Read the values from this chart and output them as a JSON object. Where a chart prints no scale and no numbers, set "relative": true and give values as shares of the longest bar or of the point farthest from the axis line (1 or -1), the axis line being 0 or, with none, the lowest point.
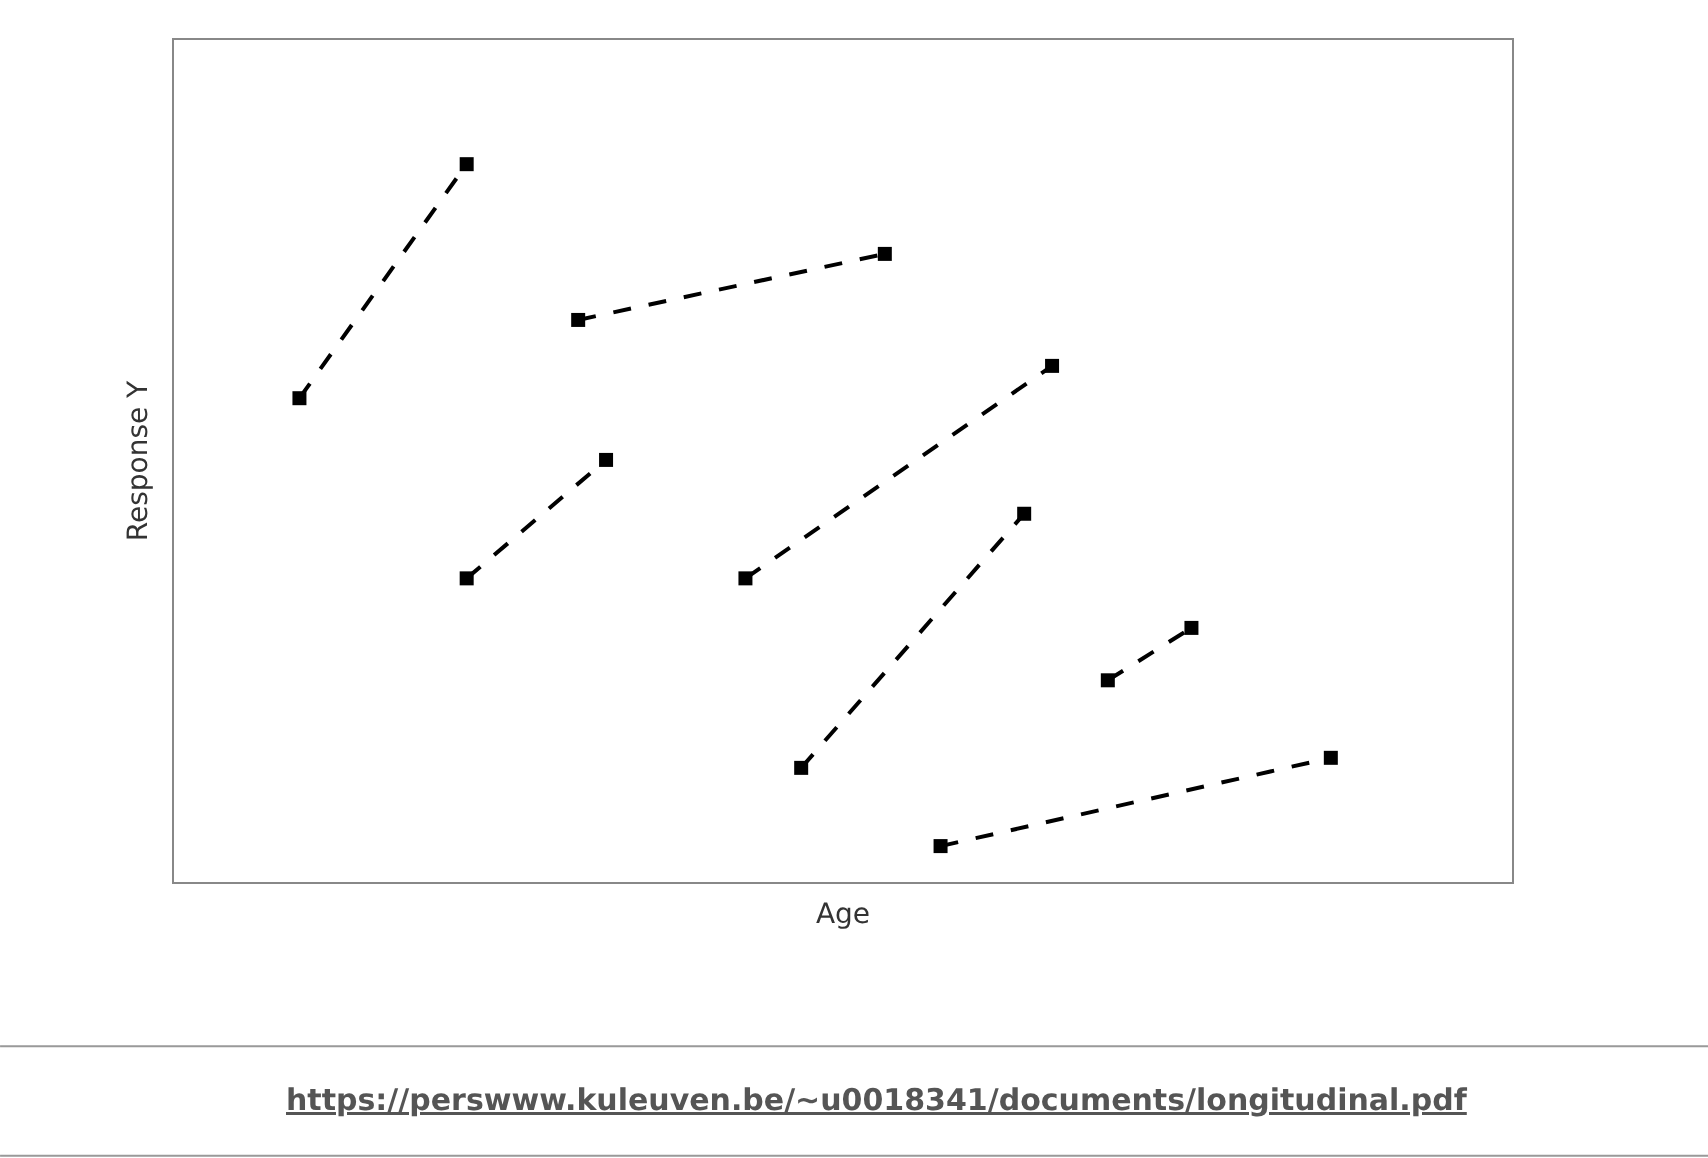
{
  "chart_data": {
    "type": "line",
    "relative": true,
    "xlabel": "Age",
    "ylabel": "Response Y",
    "marker": "square",
    "line_style": "dashed",
    "annotations": [
      "https://perswww.kuleuven.be/~u0018341/documents/longitudinal.pdf"
    ],
    "categories": [
      null,
      null,
      null,
      null,
      null,
      null,
      null,
      null,
      null,
      null,
      null,
      null,
      null,
      null,
      null,
      null,
      null,
      null,
      null,
      null,
      null,
      null,
      null,
      null,
      null,
      null,
      null,
      null,
      null,
      null,
      null,
      null,
      null,
      null,
      null,
      null,
      null,
      null,
      null,
      null,
      null,
      null,
      null,
      null,
      null,
      null,
      null,
      null
    ],
    "series": [
      {
        "color": "#000000",
        "values": [
          null,
          null,
          null,
          null,
          0.674,
          null,
          null,
          null,
          null,
          null,
          1,
          null,
          null,
          null,
          null,
          null,
          null,
          null,
          null,
          null,
          null,
          null,
          null,
          null,
          null,
          null,
          null,
          null,
          null,
          null,
          null,
          null,
          null,
          null,
          null,
          null,
          null,
          null,
          null,
          null,
          null,
          null,
          null,
          null,
          null,
          null,
          null,
          null
        ]
      },
      {
        "color": "#000000",
        "values": [
          null,
          null,
          null,
          null,
          null,
          null,
          null,
          null,
          null,
          null,
          null,
          null,
          null,
          null,
          0.783,
          null,
          null,
          null,
          null,
          null,
          null,
          null,
          null,
          null,
          null,
          0.875,
          null,
          null,
          null,
          null,
          null,
          null,
          null,
          null,
          null,
          null,
          null,
          null,
          null,
          null,
          null,
          null,
          null,
          null,
          null,
          null,
          null,
          null
        ]
      },
      {
        "color": "#000000",
        "values": [
          null,
          null,
          null,
          null,
          null,
          null,
          null,
          null,
          null,
          null,
          0.423,
          null,
          null,
          null,
          null,
          0.588,
          null,
          null,
          null,
          null,
          null,
          null,
          null,
          null,
          null,
          null,
          null,
          null,
          null,
          null,
          null,
          null,
          null,
          null,
          null,
          null,
          null,
          null,
          null,
          null,
          null,
          null,
          null,
          null,
          null,
          null,
          null,
          null
        ]
      },
      {
        "color": "#000000",
        "values": [
          null,
          null,
          null,
          null,
          null,
          null,
          null,
          null,
          null,
          null,
          null,
          null,
          null,
          null,
          null,
          null,
          null,
          null,
          null,
          null,
          0.423,
          null,
          null,
          null,
          null,
          null,
          null,
          null,
          null,
          null,
          null,
          0.719,
          null,
          null,
          null,
          null,
          null,
          null,
          null,
          null,
          null,
          null,
          null,
          null,
          null,
          null,
          null,
          null
        ]
      },
      {
        "color": "#000000",
        "values": [
          null,
          null,
          null,
          null,
          null,
          null,
          null,
          null,
          null,
          null,
          null,
          null,
          null,
          null,
          null,
          null,
          null,
          null,
          null,
          null,
          null,
          null,
          0.159,
          null,
          null,
          null,
          null,
          null,
          null,
          null,
          0.513,
          null,
          null,
          null,
          null,
          null,
          null,
          null,
          null,
          null,
          null,
          null,
          null,
          null,
          null,
          null,
          null,
          null
        ]
      },
      {
        "color": "#000000",
        "values": [
          null,
          null,
          null,
          null,
          null,
          null,
          null,
          null,
          null,
          null,
          null,
          null,
          null,
          null,
          null,
          null,
          null,
          null,
          null,
          null,
          null,
          null,
          null,
          null,
          null,
          null,
          null,
          null,
          null,
          null,
          null,
          null,
          null,
          0.281,
          null,
          null,
          0.354,
          null,
          null,
          null,
          null,
          null,
          null,
          null,
          null,
          null,
          null,
          null
        ]
      },
      {
        "color": "#000000",
        "values": [
          null,
          null,
          null,
          null,
          null,
          null,
          null,
          null,
          null,
          null,
          null,
          null,
          null,
          null,
          null,
          null,
          null,
          null,
          null,
          null,
          null,
          null,
          null,
          null,
          null,
          null,
          null,
          0.05,
          null,
          null,
          null,
          null,
          null,
          null,
          null,
          null,
          null,
          null,
          null,
          null,
          null,
          0.173,
          null,
          null,
          null,
          null,
          null,
          null
        ]
      }
    ]
  }
}
